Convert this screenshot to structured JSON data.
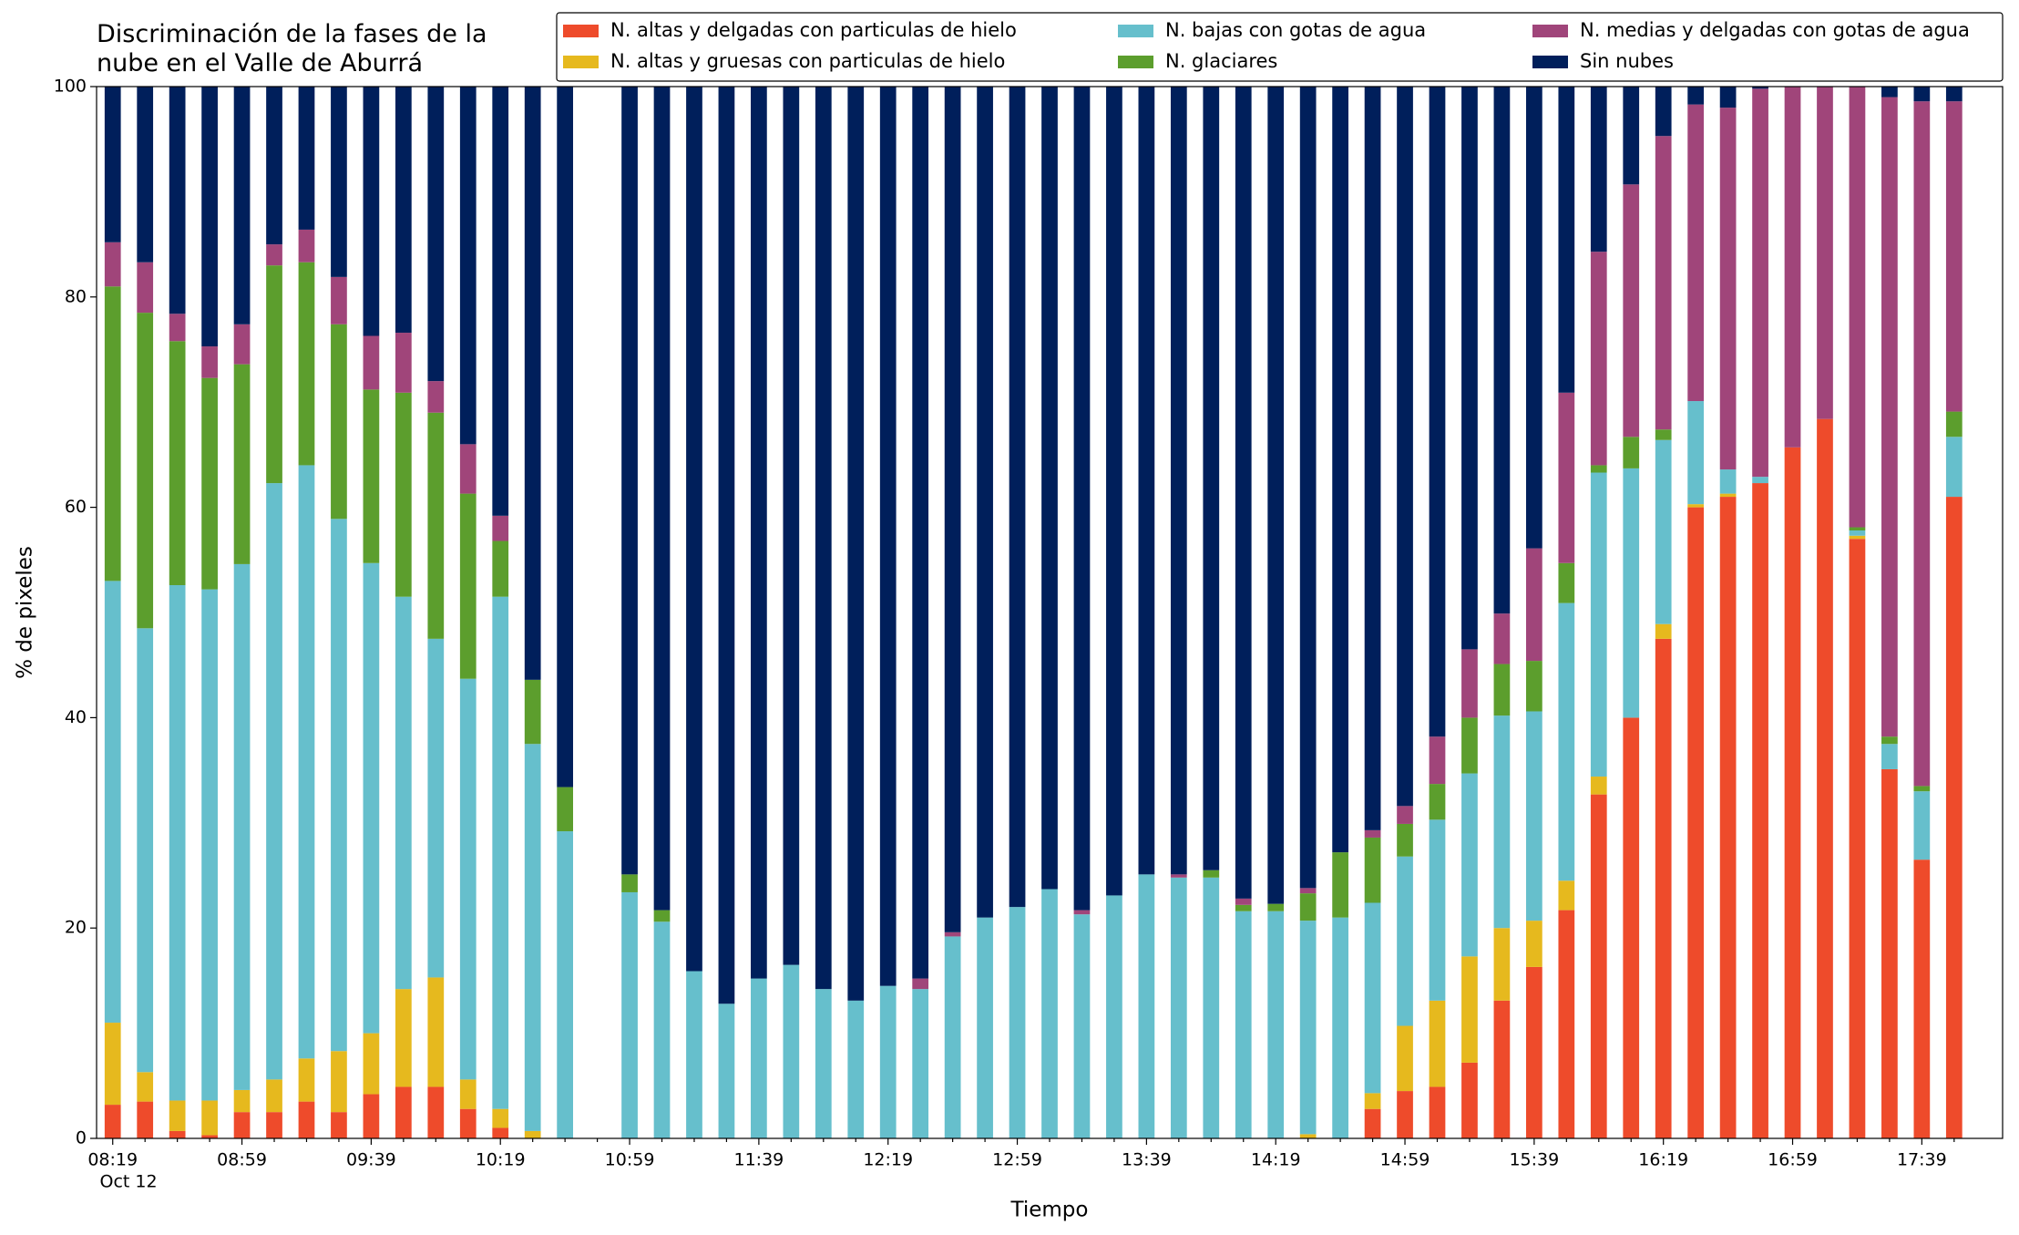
{
  "chart_data": {
    "type": "stacked_bar",
    "title": "Discriminación de la fases de la\nnube en el Valle de Aburrá",
    "xlabel": "Tiempo",
    "ylabel": "% de pixeles",
    "x_sublabel": "Oct 12",
    "categories": [
      "08:19",
      null,
      null,
      null,
      "08:59",
      null,
      null,
      null,
      "09:39",
      null,
      null,
      null,
      "10:19",
      null,
      null,
      null,
      "10:59",
      null,
      null,
      null,
      "11:39",
      null,
      null,
      null,
      "12:19",
      null,
      null,
      null,
      "12:59",
      null,
      null,
      null,
      "13:39",
      null,
      null,
      null,
      "14:19",
      null,
      null,
      null,
      "14:59",
      null,
      null,
      null,
      "15:39",
      null,
      null,
      null,
      "16:19",
      null,
      null,
      null,
      "16:59",
      null,
      null,
      null,
      "17:39",
      null
    ],
    "ylim": [
      0,
      100
    ],
    "yticks": [
      0,
      20,
      40,
      60,
      80,
      100
    ],
    "legend": "top-right",
    "series": [
      {
        "name": "N. altas y delgadas con particulas de hielo",
        "color": "#ee4b2b",
        "values": [
          3.2,
          3.5,
          0.7,
          0.3,
          2.5,
          2.5,
          3.5,
          2.5,
          4.2,
          4.9,
          4.9,
          2.8,
          1,
          0,
          0,
          null,
          0,
          0,
          0,
          0,
          0,
          0,
          0,
          0,
          0,
          0,
          0,
          0,
          0,
          0,
          0,
          0,
          0,
          0,
          0,
          0,
          0,
          0,
          0,
          2.8,
          4.5,
          4.9,
          7.2,
          13.1,
          16.3,
          21.7,
          32.7,
          40,
          47.5,
          60,
          61,
          62.3,
          65.7,
          68.4,
          57,
          35.1,
          26.5,
          61
        ]
      },
      {
        "name": "N. altas y gruesas con particulas de hielo",
        "color": "#e6b91e",
        "values": [
          7.8,
          2.8,
          2.9,
          3.3,
          2.1,
          3.1,
          4.1,
          5.8,
          5.8,
          9.3,
          10.4,
          2.8,
          1.8,
          0.7,
          0,
          null,
          0,
          0,
          0,
          0,
          0,
          0,
          0,
          0,
          0,
          0,
          0,
          0,
          0,
          0,
          0,
          0,
          0,
          0,
          0,
          0,
          0,
          0.4,
          0,
          1.5,
          6.2,
          8.2,
          10.1,
          6.9,
          4.4,
          2.8,
          1.7,
          0,
          1.4,
          0.3,
          0.3,
          0,
          0,
          0,
          0.3,
          0,
          0,
          0
        ]
      },
      {
        "name": "N. bajas con gotas de agua",
        "color": "#66bfcc",
        "values": [
          42,
          42.2,
          49,
          48.6,
          50,
          56.7,
          56.4,
          50.6,
          44.7,
          37.3,
          32.2,
          38.1,
          48.7,
          36.8,
          29.2,
          null,
          23.4,
          20.6,
          15.9,
          12.8,
          15.2,
          16.5,
          14.2,
          13.1,
          14.5,
          14.2,
          19.2,
          21,
          22,
          23.7,
          21.3,
          23.1,
          25.1,
          24.8,
          24.8,
          21.6,
          21.6,
          20.3,
          21,
          18.1,
          16.1,
          17.2,
          17.4,
          20.2,
          19.9,
          26.4,
          28.9,
          23.7,
          17.5,
          9.8,
          2.3,
          0.6,
          0,
          0,
          0.5,
          2.4,
          6.5,
          5.7
        ]
      },
      {
        "name": "N. glaciares",
        "color": "#5c9e2d",
        "values": [
          28,
          30,
          23.2,
          20.1,
          19,
          20.7,
          19.3,
          18.5,
          16.5,
          19.4,
          21.5,
          17.6,
          5.3,
          6.1,
          4.2,
          null,
          1.7,
          1.1,
          0,
          0,
          0,
          0,
          0,
          0,
          0,
          0,
          0,
          0,
          0,
          0,
          0,
          0,
          0,
          0,
          0.7,
          0.6,
          0.7,
          2.6,
          6.2,
          6.2,
          3.1,
          3.4,
          5.3,
          4.9,
          4.8,
          3.8,
          0.7,
          3,
          1,
          0,
          0,
          0,
          0,
          0,
          0.3,
          0.7,
          0.5,
          2.4
        ]
      },
      {
        "name": "N. medias y delgadas con gotas de agua",
        "color": "#a0457a",
        "values": [
          4.2,
          4.8,
          2.6,
          3,
          3.8,
          2,
          3.1,
          4.5,
          5.1,
          5.7,
          3,
          4.7,
          2.4,
          0,
          0,
          null,
          0,
          0,
          0,
          0,
          0,
          0,
          0,
          0,
          0,
          1,
          0.4,
          0,
          0,
          0,
          0.4,
          0,
          0,
          0.3,
          0,
          0.6,
          0,
          0.5,
          0,
          0.7,
          1.7,
          4.5,
          6.5,
          4.8,
          10.7,
          16.2,
          20.3,
          24,
          27.9,
          28.2,
          34.4,
          36.9,
          34.3,
          31.6,
          41.9,
          60.8,
          65.1,
          29.5
        ]
      },
      {
        "name": "Sin nubes",
        "color": "#001f5b",
        "values": [
          14.8,
          16.7,
          21.6,
          24.7,
          22.6,
          15,
          13.6,
          18.1,
          23.7,
          23.4,
          28,
          34,
          40.8,
          56.4,
          66.6,
          null,
          74.9,
          78.3,
          84.1,
          87.2,
          84.8,
          83.5,
          85.8,
          86.9,
          85.5,
          84.8,
          80.4,
          79,
          78,
          76.3,
          78.3,
          76.9,
          74.9,
          74.9,
          74.5,
          77.2,
          77.7,
          76.2,
          72.8,
          70.7,
          68.4,
          61.8,
          53.5,
          50.1,
          43.9,
          29.1,
          15.7,
          9.3,
          4.7,
          1.7,
          2,
          0.2,
          0,
          0,
          0,
          1,
          1.4,
          1.4
        ]
      }
    ]
  }
}
